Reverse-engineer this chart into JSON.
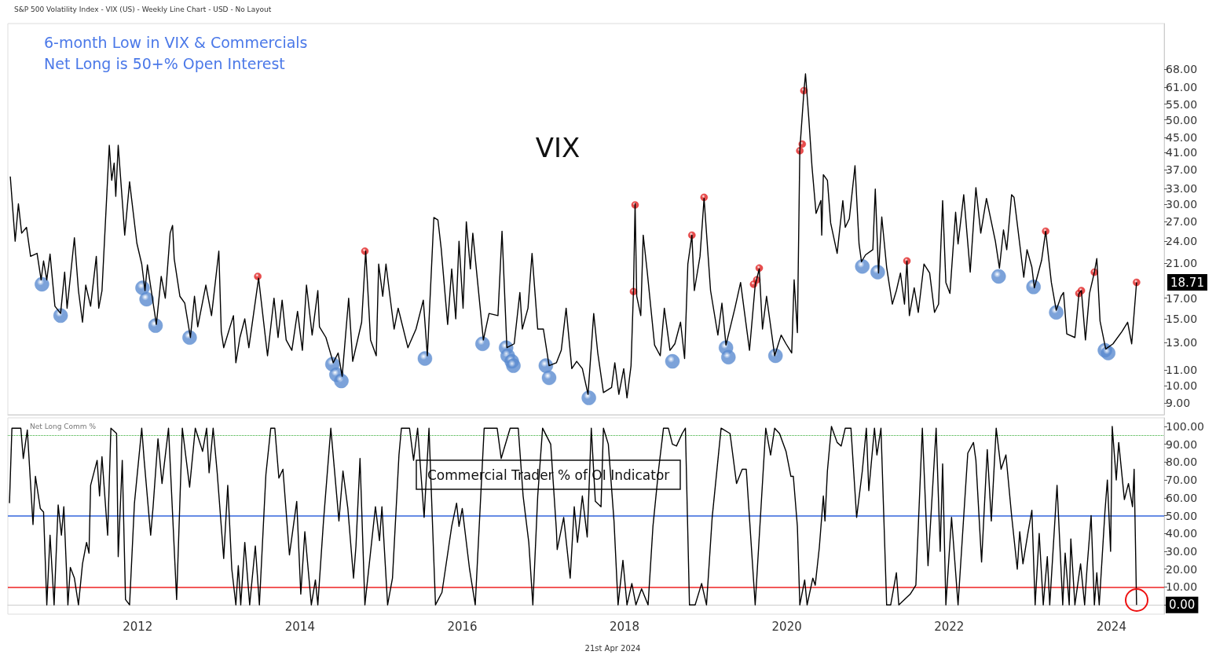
{
  "chart_data": [
    {
      "type": "line",
      "title": "6-month Low in VIX & Commercials",
      "subtitle": "Net Long is 50+% Open Interest",
      "annotations": [
        "S&P 500 Volatility Index - VIX (US) - Weekly Line Chart - USD - No Layout",
        "VIX",
        "18.71"
      ],
      "log": "y",
      "xlim": [
        2010.4,
        2024.65
      ],
      "ylim": [
        8.4,
        89.6
      ],
      "yticks": [
        {
          "value": 9,
          "label": "9.00"
        },
        {
          "value": 10,
          "label": "10.00"
        },
        {
          "value": 11,
          "label": "11.00"
        },
        {
          "value": 13,
          "label": "13.00"
        },
        {
          "value": 15,
          "label": "15.00"
        },
        {
          "value": 17,
          "label": "17.00"
        },
        {
          "value": 21,
          "label": "21.00"
        },
        {
          "value": 24,
          "label": "24.00"
        },
        {
          "value": 27,
          "label": "27.00"
        },
        {
          "value": 30,
          "label": "30.00"
        },
        {
          "value": 33,
          "label": "33.00"
        },
        {
          "value": 37,
          "label": "37.00"
        },
        {
          "value": 41,
          "label": "41.00"
        },
        {
          "value": 45,
          "label": "45.00"
        },
        {
          "value": 50,
          "label": "50.00"
        },
        {
          "value": 55,
          "label": "55.00"
        },
        {
          "value": 61,
          "label": "61.00"
        },
        {
          "value": 68,
          "label": "68.00"
        }
      ],
      "tick_labels": "y",
      "grid": false,
      "series": [
        {
          "type": "line",
          "color": "#000000",
          "marker": "none",
          "x": [
            2010.43,
            2010.49,
            2010.53,
            2010.57,
            2010.63,
            2010.68,
            2010.76,
            2010.81,
            2010.84,
            2010.88,
            2010.92,
            2010.98,
            2011.05,
            2011.1,
            2011.13,
            2011.17,
            2011.22,
            2011.27,
            2011.32,
            2011.36,
            2011.42,
            2011.49,
            2011.52,
            2011.56,
            2011.65,
            2011.68,
            2011.71,
            2011.73,
            2011.76,
            2011.82,
            2011.84,
            2011.9,
            2011.99,
            2012.05,
            2012.09,
            2012.12,
            2012.23,
            2012.29,
            2012.34,
            2012.4,
            2012.43,
            2012.45,
            2012.52,
            2012.58,
            2012.65,
            2012.7,
            2012.74,
            2012.84,
            2012.91,
            2013.0,
            2013.03,
            2013.06,
            2013.18,
            2013.21,
            2013.26,
            2013.32,
            2013.37,
            2013.49,
            2013.6,
            2013.68,
            2013.73,
            2013.78,
            2013.83,
            2013.9,
            2013.97,
            2014.03,
            2014.08,
            2014.15,
            2014.22,
            2014.24,
            2014.32,
            2014.41,
            2014.47,
            2014.52,
            2014.6,
            2014.65,
            2014.76,
            2014.81,
            2014.87,
            2014.94,
            2014.97,
            2015.02,
            2015.06,
            2015.1,
            2015.16,
            2015.21,
            2015.33,
            2015.43,
            2015.52,
            2015.57,
            2015.65,
            2015.7,
            2015.74,
            2015.82,
            2015.87,
            2015.92,
            2015.96,
            2016.01,
            2016.05,
            2016.1,
            2016.13,
            2016.23,
            2016.26,
            2016.33,
            2016.44,
            2016.49,
            2016.55,
            2016.64,
            2016.71,
            2016.74,
            2016.81,
            2016.86,
            2016.93,
            2017.0,
            2017.07,
            2017.16,
            2017.22,
            2017.28,
            2017.35,
            2017.41,
            2017.48,
            2017.55,
            2017.62,
            2017.67,
            2017.74,
            2017.84,
            2017.88,
            2017.93,
            2017.99,
            2018.03,
            2018.08,
            2018.11,
            2018.13,
            2018.15,
            2018.2,
            2018.23,
            2018.28,
            2018.37,
            2018.44,
            2018.49,
            2018.56,
            2018.62,
            2018.69,
            2018.74,
            2018.78,
            2018.83,
            2018.86,
            2018.93,
            2018.98,
            2019.06,
            2019.15,
            2019.2,
            2019.25,
            2019.36,
            2019.43,
            2019.48,
            2019.54,
            2019.61,
            2019.66,
            2019.7,
            2019.75,
            2019.85,
            2019.93,
            2019.99,
            2020.06,
            2020.09,
            2020.13,
            2020.16,
            2020.21,
            2020.23,
            2020.27,
            2020.31,
            2020.36,
            2020.42,
            2020.43,
            2020.45,
            2020.5,
            2020.54,
            2020.62,
            2020.69,
            2020.72,
            2020.77,
            2020.84,
            2020.89,
            2020.92,
            2020.97,
            2021.06,
            2021.09,
            2021.13,
            2021.17,
            2021.23,
            2021.3,
            2021.35,
            2021.4,
            2021.45,
            2021.48,
            2021.51,
            2021.57,
            2021.62,
            2021.69,
            2021.76,
            2021.82,
            2021.87,
            2021.92,
            2021.96,
            2022.01,
            2022.08,
            2022.11,
            2022.18,
            2022.26,
            2022.33,
            2022.39,
            2022.46,
            2022.57,
            2022.62,
            2022.67,
            2022.71,
            2022.77,
            2022.8,
            2022.87,
            2022.92,
            2022.96,
            2023.02,
            2023.05,
            2023.14,
            2023.19,
            2023.26,
            2023.32,
            2023.38,
            2023.41,
            2023.45,
            2023.55,
            2023.6,
            2023.63,
            2023.68,
            2023.73,
            2023.79,
            2023.82,
            2023.86,
            2023.93,
            2024.02,
            2024.13,
            2024.2,
            2024.25,
            2024.31
          ],
          "values": [
            35.5,
            24.0,
            30.1,
            25.2,
            26.1,
            21.9,
            22.3,
            19.0,
            21.3,
            19.0,
            22.2,
            16.2,
            15.5,
            19.9,
            16.0,
            19.3,
            24.5,
            17.8,
            14.7,
            18.4,
            16.2,
            21.9,
            16.0,
            17.8,
            42.9,
            34.7,
            38.5,
            31.5,
            42.9,
            28.7,
            24.9,
            34.4,
            23.7,
            20.9,
            17.8,
            20.8,
            14.5,
            19.4,
            17.0,
            25.2,
            26.4,
            21.6,
            17.2,
            16.5,
            13.4,
            17.2,
            14.3,
            18.4,
            15.3,
            22.6,
            13.9,
            12.6,
            15.3,
            11.5,
            13.4,
            15.0,
            12.6,
            19.2,
            12.0,
            17.0,
            13.4,
            16.8,
            13.2,
            12.4,
            15.7,
            12.4,
            18.4,
            13.6,
            17.8,
            14.3,
            13.4,
            11.5,
            12.2,
            10.6,
            17.0,
            11.6,
            14.7,
            22.6,
            13.2,
            12.0,
            20.9,
            17.2,
            20.9,
            17.8,
            14.1,
            16.0,
            12.6,
            14.1,
            16.8,
            12.0,
            27.7,
            27.3,
            23.0,
            14.5,
            20.3,
            15.0,
            24.0,
            16.0,
            27.0,
            20.3,
            25.2,
            15.3,
            13.2,
            15.5,
            15.3,
            25.5,
            12.6,
            12.9,
            17.6,
            14.1,
            16.0,
            22.3,
            14.1,
            14.1,
            11.3,
            11.5,
            12.4,
            16.0,
            11.1,
            11.6,
            11.1,
            9.5,
            15.5,
            12.2,
            9.6,
            9.9,
            11.5,
            9.5,
            11.1,
            9.3,
            11.3,
            17.8,
            30.1,
            17.2,
            15.3,
            24.9,
            19.9,
            12.8,
            12.0,
            16.0,
            12.4,
            12.9,
            14.7,
            11.8,
            20.9,
            24.9,
            17.8,
            21.9,
            31.1,
            17.8,
            13.6,
            16.5,
            12.8,
            16.0,
            18.7,
            15.5,
            12.4,
            18.4,
            20.3,
            14.1,
            17.2,
            12.0,
            13.6,
            12.9,
            12.2,
            19.0,
            13.8,
            41.7,
            59.2,
            66.1,
            50.7,
            37.7,
            28.4,
            30.7,
            24.9,
            35.9,
            34.7,
            26.8,
            22.3,
            30.7,
            26.1,
            27.5,
            37.9,
            23.6,
            21.2,
            22.1,
            22.8,
            32.9,
            19.8,
            27.8,
            20.5,
            16.4,
            17.8,
            19.8,
            16.4,
            21.3,
            15.3,
            18.1,
            15.6,
            20.9,
            19.8,
            15.6,
            16.4,
            30.7,
            18.7,
            17.5,
            28.6,
            23.6,
            31.8,
            19.9,
            33.2,
            25.2,
            31.1,
            24.0,
            20.4,
            25.7,
            22.8,
            31.8,
            31.3,
            23.6,
            19.3,
            22.8,
            20.5,
            18.1,
            21.4,
            25.5,
            18.7,
            15.8,
            17.2,
            17.6,
            13.7,
            13.4,
            17.5,
            17.8,
            13.2,
            17.5,
            19.9,
            21.6,
            14.8,
            12.5,
            12.9,
            13.9,
            14.7,
            12.9,
            18.71
          ]
        },
        {
          "type": "scatter",
          "color": "#5b8bd0",
          "marker": "circle",
          "x": [
            2010.82,
            2011.05,
            2012.06,
            2012.11,
            2012.22,
            2012.64,
            2014.4,
            2014.45,
            2014.51,
            2015.54,
            2016.25,
            2016.54,
            2016.56,
            2016.61,
            2016.63,
            2017.03,
            2017.07,
            2017.56,
            2018.59,
            2019.25,
            2019.28,
            2019.86,
            2020.93,
            2021.12,
            2022.61,
            2023.04,
            2023.32,
            2023.92,
            2023.96
          ],
          "values": [
            18.5,
            15.3,
            18.1,
            16.9,
            14.4,
            13.4,
            11.4,
            10.7,
            10.3,
            11.8,
            12.9,
            12.6,
            12.0,
            11.6,
            11.3,
            11.3,
            10.5,
            9.3,
            11.6,
            12.6,
            11.9,
            12.0,
            20.6,
            19.9,
            19.4,
            18.2,
            15.6,
            12.4,
            12.2
          ]
        },
        {
          "type": "scatter",
          "color": "#e02020",
          "marker": "circle",
          "x": [
            2013.48,
            2014.8,
            2018.11,
            2018.13,
            2018.83,
            2018.98,
            2019.59,
            2019.63,
            2019.66,
            2020.16,
            2020.19,
            2020.21,
            2021.48,
            2023.19,
            2023.6,
            2023.63,
            2023.79,
            2024.31
          ],
          "values": [
            19.4,
            22.6,
            17.7,
            29.9,
            24.9,
            31.3,
            18.5,
            19.0,
            20.4,
            41.5,
            43.2,
            59.7,
            21.3,
            25.5,
            17.5,
            17.8,
            19.9,
            18.71
          ]
        }
      ]
    },
    {
      "type": "line",
      "title": "Commercial Trader % of OI Indicator",
      "annotations": [
        "Net Long Comm %",
        "21st Apr 2024"
      ],
      "xlim": [
        2010.4,
        2024.65
      ],
      "ylim": [
        -5.2,
        104.8
      ],
      "xticks": [
        2012,
        2014,
        2016,
        2018,
        2020,
        2022,
        2024
      ],
      "yticks": [
        {
          "value": 0,
          "label": "0.00"
        },
        {
          "value": 10,
          "label": "10.00"
        },
        {
          "value": 20,
          "label": "20.00"
        },
        {
          "value": 30,
          "label": "30.00"
        },
        {
          "value": 40,
          "label": "40.00"
        },
        {
          "value": 50,
          "label": "50.00"
        },
        {
          "value": 60,
          "label": "60.00"
        },
        {
          "value": 70,
          "label": "70.00"
        },
        {
          "value": 80,
          "label": "80.00"
        },
        {
          "value": 90,
          "label": "90.00"
        },
        {
          "value": 100,
          "label": "100.00"
        }
      ],
      "grid": false,
      "ref_lines": [
        {
          "axis": "y",
          "value": 95,
          "color": "#33aa33",
          "line_style": "dotted"
        },
        {
          "axis": "y",
          "value": 50,
          "color": "#3366dd",
          "line_style": "solid"
        },
        {
          "axis": "y",
          "value": 10,
          "color": "#ee2222",
          "line_style": "solid"
        }
      ],
      "series": [
        {
          "type": "line",
          "color": "#000000",
          "marker": "none",
          "x": [
            2010.42,
            2010.45,
            2010.56,
            2010.59,
            2010.64,
            2010.71,
            2010.74,
            2010.8,
            2010.84,
            2010.88,
            2010.92,
            2010.97,
            2011.02,
            2011.06,
            2011.09,
            2011.14,
            2011.17,
            2011.22,
            2011.27,
            2011.32,
            2011.37,
            2011.4,
            2011.42,
            2011.5,
            2011.53,
            2011.56,
            2011.63,
            2011.67,
            2011.74,
            2011.76,
            2011.81,
            2011.85,
            2011.9,
            2011.96,
            2012.05,
            2012.08,
            2012.16,
            2012.19,
            2012.25,
            2012.3,
            2012.38,
            2012.48,
            2012.55,
            2012.64,
            2012.71,
            2012.8,
            2012.85,
            2012.88,
            2012.93,
            2012.98,
            2013.06,
            2013.11,
            2013.16,
            2013.21,
            2013.24,
            2013.27,
            2013.32,
            2013.38,
            2013.45,
            2013.5,
            2013.58,
            2013.64,
            2013.69,
            2013.74,
            2013.79,
            2013.87,
            2013.96,
            2014.01,
            2014.06,
            2014.14,
            2014.19,
            2014.22,
            2014.29,
            2014.38,
            2014.48,
            2014.53,
            2014.59,
            2014.66,
            2014.69,
            2014.74,
            2014.8,
            2014.93,
            2014.98,
            2015.01,
            2015.08,
            2015.14,
            2015.22,
            2015.25,
            2015.35,
            2015.4,
            2015.45,
            2015.53,
            2015.59,
            2015.67,
            2015.75,
            2015.87,
            2015.93,
            2015.96,
            2016.0,
            2016.09,
            2016.16,
            2016.27,
            2016.43,
            2016.48,
            2016.59,
            2016.69,
            2016.75,
            2016.82,
            2016.87,
            2016.93,
            2016.99,
            2017.09,
            2017.16,
            2017.17,
            2017.25,
            2017.33,
            2017.38,
            2017.42,
            2017.48,
            2017.54,
            2017.59,
            2017.64,
            2017.71,
            2017.74,
            2017.8,
            2017.87,
            2017.92,
            2017.98,
            2018.03,
            2018.09,
            2018.14,
            2018.21,
            2018.29,
            2018.35,
            2018.42,
            2018.48,
            2018.54,
            2018.59,
            2018.64,
            2018.71,
            2018.75,
            2018.8,
            2018.87,
            2018.95,
            2019.01,
            2019.08,
            2019.19,
            2019.3,
            2019.38,
            2019.45,
            2019.5,
            2019.61,
            2019.74,
            2019.8,
            2019.85,
            2019.91,
            2019.99,
            2020.05,
            2020.08,
            2020.13,
            2020.16,
            2020.22,
            2020.25,
            2020.32,
            2020.35,
            2020.4,
            2020.45,
            2020.47,
            2020.5,
            2020.55,
            2020.62,
            2020.67,
            2020.72,
            2020.79,
            2020.86,
            2020.93,
            2020.98,
            2021.01,
            2021.08,
            2021.11,
            2021.16,
            2021.23,
            2021.28,
            2021.35,
            2021.38,
            2021.52,
            2021.59,
            2021.67,
            2021.74,
            2021.84,
            2021.89,
            2021.92,
            2021.96,
            2022.03,
            2022.11,
            2022.23,
            2022.3,
            2022.33,
            2022.4,
            2022.47,
            2022.52,
            2022.58,
            2022.64,
            2022.7,
            2022.77,
            2022.84,
            2022.87,
            2022.91,
            2022.97,
            2023.02,
            2023.06,
            2023.11,
            2023.16,
            2023.21,
            2023.24,
            2023.33,
            2023.4,
            2023.43,
            2023.48,
            2023.5,
            2023.55,
            2023.62,
            2023.67,
            2023.7,
            2023.75,
            2023.79,
            2023.82,
            2023.85,
            2023.92,
            2023.95,
            2023.99,
            2024.01,
            2024.06,
            2024.09,
            2024.16,
            2024.21,
            2024.26,
            2024.28,
            2024.31
          ],
          "values": [
            57,
            99,
            99,
            82,
            98,
            45,
            72,
            54,
            52,
            0,
            39,
            0,
            56,
            39,
            55,
            0,
            21,
            15,
            0,
            23,
            35,
            29,
            67,
            81,
            61,
            83,
            39,
            99,
            96,
            27,
            81,
            3,
            0,
            57,
            99,
            81,
            39,
            55,
            93,
            68,
            99,
            3,
            99,
            66,
            99,
            86,
            99,
            74,
            99,
            74,
            26,
            67,
            20,
            0,
            22,
            0,
            35,
            0,
            33,
            0,
            73,
            99,
            99,
            71,
            76,
            28,
            58,
            6,
            41,
            0,
            14,
            0,
            47,
            99,
            47,
            75,
            54,
            15,
            33,
            82,
            0,
            55,
            36,
            55,
            0,
            15,
            84,
            99,
            99,
            81,
            99,
            49,
            99,
            0,
            7,
            44,
            57,
            44,
            54,
            20,
            0,
            99,
            99,
            82,
            99,
            99,
            61,
            35,
            0,
            61,
            99,
            90,
            42,
            31,
            49,
            15,
            55,
            35,
            61,
            38,
            99,
            58,
            55,
            99,
            90,
            47,
            0,
            25,
            0,
            12,
            0,
            9,
            0,
            44,
            76,
            99,
            99,
            90,
            89,
            96,
            99,
            0,
            0,
            12,
            0,
            49,
            99,
            96,
            68,
            76,
            76,
            0,
            99,
            84,
            99,
            96,
            86,
            72,
            72,
            44,
            0,
            14,
            0,
            15,
            11,
            32,
            61,
            47,
            75,
            100,
            91,
            89,
            99,
            99,
            49,
            75,
            99,
            64,
            99,
            84,
            99,
            0,
            0,
            18,
            0,
            6,
            11,
            99,
            22,
            99,
            30,
            79,
            0,
            49,
            0,
            85,
            91,
            81,
            24,
            87,
            47,
            99,
            76,
            84,
            50,
            20,
            41,
            23,
            40,
            53,
            0,
            40,
            0,
            27,
            0,
            67,
            0,
            29,
            0,
            37,
            0,
            23,
            0,
            21,
            50,
            0,
            18,
            0,
            52,
            70,
            30,
            100,
            70,
            91,
            59,
            68,
            55,
            76,
            0
          ]
        }
      ]
    }
  ]
}
